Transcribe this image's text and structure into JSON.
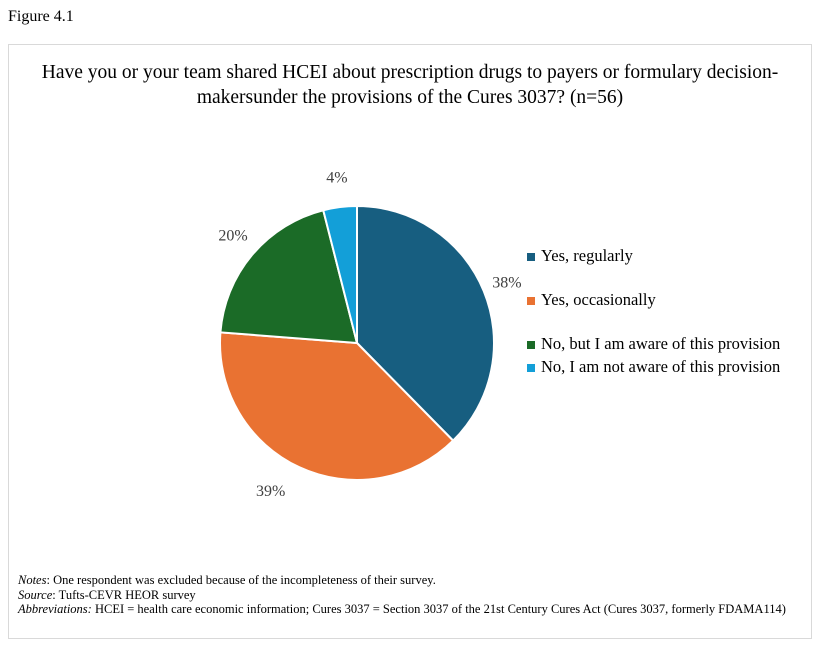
{
  "figure_label": "Figure 4.1",
  "chart_data": {
    "type": "pie",
    "title": "Have you or your team shared HCEI about prescription drugs to payers or formulary decision-makersunder the provisions of the Cures 3037? (n=56)",
    "slices": [
      {
        "name": "Yes, regularly",
        "value": 38,
        "label": "38%",
        "color": "#175e80"
      },
      {
        "name": "Yes, occasionally",
        "value": 39,
        "label": "39%",
        "color": "#e97232"
      },
      {
        "name": "No, but I am aware of this provision",
        "value": 20,
        "label": "20%",
        "color": "#1b6b27"
      },
      {
        "name": "No, I am not aware of this provision",
        "value": 4,
        "label": "4%",
        "color": "#139fd8"
      }
    ],
    "legend_placement": "right",
    "start_angle": "12 o'clock, clockwise"
  },
  "notes": {
    "notes_label": "Notes",
    "notes_text": ": One respondent was excluded because of the incompleteness of their survey.",
    "source_label": "Source",
    "source_text": ": Tufts-CEVR HEOR survey",
    "abbr_label": "Abbreviations:",
    "abbr_text": " HCEI = health care economic information; Cures 3037 = Section 3037 of the 21st Century Cures Act (Cures 3037, formerly FDAMA114)"
  }
}
